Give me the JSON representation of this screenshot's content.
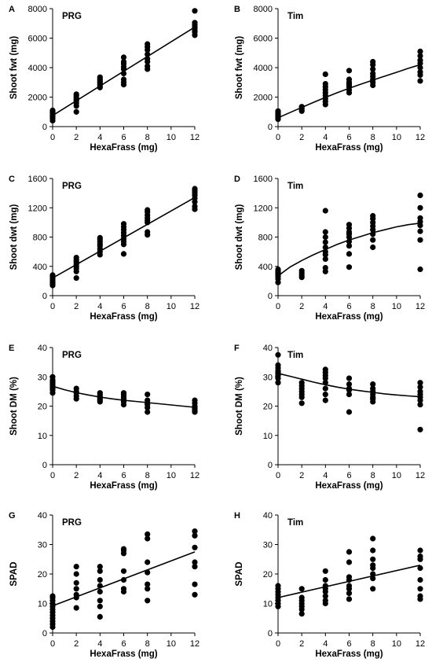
{
  "chart_data": [
    {
      "type": "scatter",
      "panel_label": "A",
      "title": "PRG",
      "xlabel": "HexaFrass (mg)",
      "ylabel": "Shoot fwt  (mg)",
      "xlim": [
        0,
        12
      ],
      "ylim": [
        0,
        8000
      ],
      "x_ticks": [
        "0",
        "2",
        "4",
        "6",
        "8",
        "10",
        "12"
      ],
      "y_ticks": [
        "0",
        "2000",
        "4000",
        "6000",
        "8000"
      ],
      "x": [
        0,
        0,
        0,
        0,
        0,
        0,
        0,
        0,
        2,
        2,
        2,
        2,
        2,
        2,
        2,
        2,
        4,
        4,
        4,
        4,
        4,
        4,
        4,
        4,
        6,
        6,
        6,
        6,
        6,
        6,
        6,
        6,
        6,
        8,
        8,
        8,
        8,
        8,
        8,
        8,
        8,
        12,
        12,
        12,
        12,
        12,
        12,
        12,
        12
      ],
      "y": [
        400,
        550,
        650,
        750,
        850,
        950,
        1050,
        1100,
        1000,
        1400,
        1600,
        1750,
        1850,
        1950,
        2100,
        2200,
        2650,
        2750,
        2850,
        2950,
        3050,
        3150,
        3250,
        3350,
        2850,
        3000,
        3200,
        3600,
        3900,
        4050,
        4250,
        4400,
        4700,
        3900,
        4100,
        4400,
        4600,
        4900,
        5200,
        5400,
        5600,
        6200,
        6400,
        6500,
        6650,
        6750,
        6900,
        7050,
        7850
      ],
      "fit": {
        "kind": "linear",
        "x": [
          0,
          12
        ],
        "y": [
          750,
          6750
        ]
      }
    },
    {
      "type": "scatter",
      "panel_label": "B",
      "title": "Tim",
      "xlabel": "HexaFrass (mg)",
      "ylabel": "Shoot fwt  (mg)",
      "xlim": [
        0,
        12
      ],
      "ylim": [
        0,
        8000
      ],
      "x_ticks": [
        "0",
        "2",
        "4",
        "6",
        "8",
        "10",
        "12"
      ],
      "y_ticks": [
        "0",
        "2000",
        "4000",
        "6000",
        "8000"
      ],
      "x": [
        0,
        0,
        0,
        0,
        0,
        0,
        0,
        0,
        2,
        2,
        2,
        2,
        4,
        4,
        4,
        4,
        4,
        4,
        4,
        4,
        4,
        6,
        6,
        6,
        6,
        6,
        6,
        6,
        6,
        8,
        8,
        8,
        8,
        8,
        8,
        8,
        8,
        12,
        12,
        12,
        12,
        12,
        12,
        12,
        12
      ],
      "y": [
        500,
        600,
        700,
        750,
        800,
        850,
        950,
        1050,
        1050,
        1150,
        1250,
        1350,
        1500,
        1700,
        1900,
        2100,
        2300,
        2500,
        2700,
        2900,
        3550,
        2300,
        2500,
        2700,
        2800,
        2900,
        3000,
        3200,
        3800,
        2800,
        3000,
        3200,
        3400,
        3600,
        3900,
        4200,
        4400,
        3100,
        3500,
        3700,
        4000,
        4300,
        4500,
        4800,
        5100
      ],
      "fit": {
        "kind": "curve",
        "x": [
          0,
          1,
          2,
          3,
          4,
          5,
          6,
          7,
          8,
          9,
          10,
          11,
          12
        ],
        "y": [
          600,
          950,
          1300,
          1650,
          1980,
          2300,
          2600,
          2880,
          3150,
          3420,
          3680,
          3950,
          4200
        ]
      }
    },
    {
      "type": "scatter",
      "panel_label": "C",
      "title": "PRG",
      "xlabel": "HexaFrass (mg)",
      "ylabel": "Shoot dwt  (mg)",
      "xlim": [
        0,
        12
      ],
      "ylim": [
        0,
        1600
      ],
      "x_ticks": [
        "0",
        "2",
        "4",
        "6",
        "8",
        "10",
        "12"
      ],
      "y_ticks": [
        "0",
        "400",
        "800",
        "1200",
        "1600"
      ],
      "x": [
        0,
        0,
        0,
        0,
        0,
        0,
        0,
        0,
        2,
        2,
        2,
        2,
        2,
        2,
        2,
        2,
        4,
        4,
        4,
        4,
        4,
        4,
        4,
        4,
        6,
        6,
        6,
        6,
        6,
        6,
        6,
        6,
        6,
        8,
        8,
        8,
        8,
        8,
        8,
        8,
        8,
        12,
        12,
        12,
        12,
        12,
        12,
        12,
        12
      ],
      "y": [
        140,
        160,
        180,
        200,
        220,
        240,
        260,
        280,
        240,
        330,
        370,
        400,
        430,
        460,
        490,
        520,
        560,
        600,
        640,
        680,
        710,
        740,
        770,
        790,
        570,
        700,
        740,
        780,
        820,
        860,
        900,
        940,
        980,
        830,
        870,
        1000,
        1030,
        1060,
        1100,
        1140,
        1170,
        1180,
        1220,
        1280,
        1330,
        1370,
        1400,
        1430,
        1460
      ],
      "fit": {
        "kind": "linear",
        "x": [
          0,
          12
        ],
        "y": [
          240,
          1340
        ]
      }
    },
    {
      "type": "scatter",
      "panel_label": "D",
      "title": "Tim",
      "xlabel": "HexaFrass (mg)",
      "ylabel": "Shoot dwt  (mg)",
      "xlim": [
        0,
        12
      ],
      "ylim": [
        0,
        1600
      ],
      "x_ticks": [
        "0",
        "2",
        "4",
        "6",
        "8",
        "10",
        "12"
      ],
      "y_ticks": [
        "0",
        "400",
        "800",
        "1200",
        "1600"
      ],
      "x": [
        0,
        0,
        0,
        0,
        0,
        0,
        0,
        0,
        2,
        2,
        2,
        2,
        4,
        4,
        4,
        4,
        4,
        4,
        4,
        4,
        4,
        4,
        6,
        6,
        6,
        6,
        6,
        6,
        6,
        6,
        6,
        8,
        8,
        8,
        8,
        8,
        8,
        8,
        8,
        12,
        12,
        12,
        12,
        12,
        12,
        12,
        12
      ],
      "y": [
        180,
        230,
        260,
        280,
        300,
        320,
        340,
        360,
        250,
        280,
        310,
        340,
        330,
        380,
        500,
        560,
        600,
        660,
        730,
        800,
        870,
        1160,
        390,
        570,
        680,
        740,
        800,
        840,
        870,
        920,
        970,
        660,
        760,
        840,
        900,
        950,
        1000,
        1050,
        1090,
        360,
        760,
        880,
        960,
        1010,
        1060,
        1200,
        1370
      ],
      "fit": {
        "kind": "curve",
        "x": [
          0,
          1,
          2,
          3,
          4,
          5,
          6,
          7,
          8,
          9,
          10,
          11,
          12
        ],
        "y": [
          270,
          390,
          480,
          560,
          630,
          700,
          760,
          810,
          860,
          900,
          940,
          970,
          990
        ]
      }
    },
    {
      "type": "scatter",
      "panel_label": "E",
      "title": "PRG",
      "xlabel": "HexaFrass (mg)",
      "ylabel": "Shoot DM (%)",
      "xlim": [
        0,
        12
      ],
      "ylim": [
        0,
        40
      ],
      "x_ticks": [
        "0",
        "2",
        "4",
        "6",
        "8",
        "10",
        "12"
      ],
      "y_ticks": [
        "0",
        "10",
        "20",
        "30",
        "40"
      ],
      "x": [
        0,
        0,
        0,
        0,
        0,
        0,
        0,
        0,
        0,
        0,
        2,
        2,
        2,
        2,
        2,
        4,
        4,
        4,
        4,
        4,
        4,
        4,
        6,
        6,
        6,
        6,
        6,
        6,
        6,
        6,
        8,
        8,
        8,
        8,
        8,
        8,
        12,
        12,
        12,
        12,
        12,
        12,
        12
      ],
      "y": [
        24.5,
        25.5,
        26,
        26.5,
        27,
        27.5,
        28,
        28.5,
        29,
        30,
        22.5,
        23.5,
        24.5,
        25,
        26,
        21.5,
        22,
        22.5,
        23,
        23.5,
        24,
        24.5,
        20.5,
        21.5,
        22,
        22.5,
        23,
        23.5,
        24,
        24.5,
        18,
        19.5,
        20.5,
        21,
        22,
        24,
        18,
        18.5,
        19,
        19.5,
        20,
        21,
        22
      ],
      "fit": {
        "kind": "curve",
        "x": [
          0,
          1,
          2,
          3,
          4,
          5,
          6,
          7,
          8,
          9,
          10,
          11,
          12
        ],
        "y": [
          26.8,
          25.6,
          24.6,
          23.8,
          23.1,
          22.5,
          22.0,
          21.6,
          21.2,
          20.8,
          20.4,
          20.0,
          19.6
        ]
      }
    },
    {
      "type": "scatter",
      "panel_label": "F",
      "title": "Tim",
      "xlabel": "HexaFrass (mg)",
      "ylabel": "Shoot DM (%)",
      "xlim": [
        0,
        12
      ],
      "ylim": [
        0,
        40
      ],
      "x_ticks": [
        "0",
        "2",
        "4",
        "6",
        "8",
        "10",
        "12"
      ],
      "y_ticks": [
        "0",
        "10",
        "20",
        "30",
        "40"
      ],
      "x": [
        0,
        0,
        0,
        0,
        0,
        0,
        0,
        0,
        0,
        2,
        2,
        2,
        2,
        2,
        2,
        2,
        4,
        4,
        4,
        4,
        4,
        4,
        4,
        4,
        6,
        6,
        6,
        6,
        6,
        6,
        8,
        8,
        8,
        8,
        8,
        8,
        8,
        12,
        12,
        12,
        12,
        12,
        12,
        12,
        12
      ],
      "y": [
        28,
        29.5,
        30.5,
        31,
        31.5,
        32,
        33,
        34,
        37.5,
        21,
        23,
        24,
        25,
        26,
        27,
        28,
        22,
        24,
        26,
        28,
        29.5,
        30.5,
        31.5,
        32.5,
        18,
        24,
        25.5,
        26,
        27.5,
        29.5,
        21.5,
        22.5,
        23,
        24,
        25,
        26,
        27.5,
        12,
        20.5,
        22,
        23,
        24,
        25,
        26.5,
        28
      ],
      "fit": {
        "kind": "curve",
        "x": [
          0,
          1,
          2,
          3,
          4,
          5,
          6,
          7,
          8,
          9,
          10,
          11,
          12
        ],
        "y": [
          31.2,
          30.2,
          29.2,
          28.2,
          27.3,
          26.5,
          25.8,
          25.2,
          24.7,
          24.2,
          23.8,
          23.5,
          23.2
        ]
      }
    },
    {
      "type": "scatter",
      "panel_label": "G",
      "title": "PRG",
      "xlabel": "HexaFrass (mg)",
      "ylabel": "SPAD",
      "xlim": [
        0,
        12
      ],
      "ylim": [
        0,
        40
      ],
      "x_ticks": [
        "0",
        "2",
        "4",
        "6",
        "8",
        "10",
        "12"
      ],
      "y_ticks": [
        "0",
        "10",
        "20",
        "30",
        "40"
      ],
      "x": [
        0,
        0,
        0,
        0,
        0,
        0,
        0,
        0,
        0,
        0,
        0,
        0,
        2,
        2,
        2,
        2,
        2,
        2,
        2,
        4,
        4,
        4,
        4,
        4,
        4,
        4,
        4,
        6,
        6,
        6,
        6,
        6,
        6,
        6,
        8,
        8,
        8,
        8,
        8,
        8,
        8,
        12,
        12,
        12,
        12,
        12,
        12,
        12
      ],
      "y": [
        2,
        3,
        4,
        5,
        6,
        7,
        8,
        9,
        10,
        11,
        12,
        12.5,
        8.5,
        12,
        13,
        15,
        17,
        20,
        22.5,
        5.5,
        9,
        11,
        14,
        16,
        18,
        21,
        22.5,
        14,
        15,
        18,
        21,
        27,
        28,
        28.5,
        11,
        15,
        16.5,
        20.5,
        24,
        32,
        33.5,
        13,
        16.5,
        22.5,
        24,
        29,
        33,
        34.5
      ],
      "fit": {
        "kind": "linear",
        "x": [
          0,
          12
        ],
        "y": [
          9.2,
          27.5
        ]
      }
    },
    {
      "type": "scatter",
      "panel_label": "H",
      "title": "Tim",
      "xlabel": "HexaFrass (mg)",
      "ylabel": "SPAD",
      "xlim": [
        0,
        12
      ],
      "ylim": [
        0,
        40
      ],
      "x_ticks": [
        "0",
        "2",
        "4",
        "6",
        "8",
        "10",
        "12"
      ],
      "y_ticks": [
        "0",
        "10",
        "20",
        "30",
        "40"
      ],
      "x": [
        0,
        0,
        0,
        0,
        0,
        0,
        0,
        0,
        2,
        2,
        2,
        2,
        2,
        2,
        2,
        4,
        4,
        4,
        4,
        4,
        4,
        4,
        4,
        6,
        6,
        6,
        6,
        6,
        6,
        6,
        6,
        8,
        8,
        8,
        8,
        8,
        8,
        8,
        8,
        12,
        12,
        12,
        12,
        12,
        12,
        12,
        12
      ],
      "y": [
        9,
        10,
        11,
        12,
        13,
        14,
        15,
        16,
        6.5,
        8,
        9,
        10,
        11,
        12,
        15,
        10,
        11,
        12.5,
        14,
        15,
        16,
        18,
        21,
        11.5,
        13.5,
        15,
        16,
        18,
        19,
        24,
        27.5,
        15,
        18.5,
        20,
        22,
        23,
        25,
        28,
        32,
        11.5,
        12.5,
        15,
        18,
        22,
        25,
        26,
        28
      ],
      "fit": {
        "kind": "linear",
        "x": [
          0,
          12
        ],
        "y": [
          12,
          23
        ]
      }
    }
  ]
}
